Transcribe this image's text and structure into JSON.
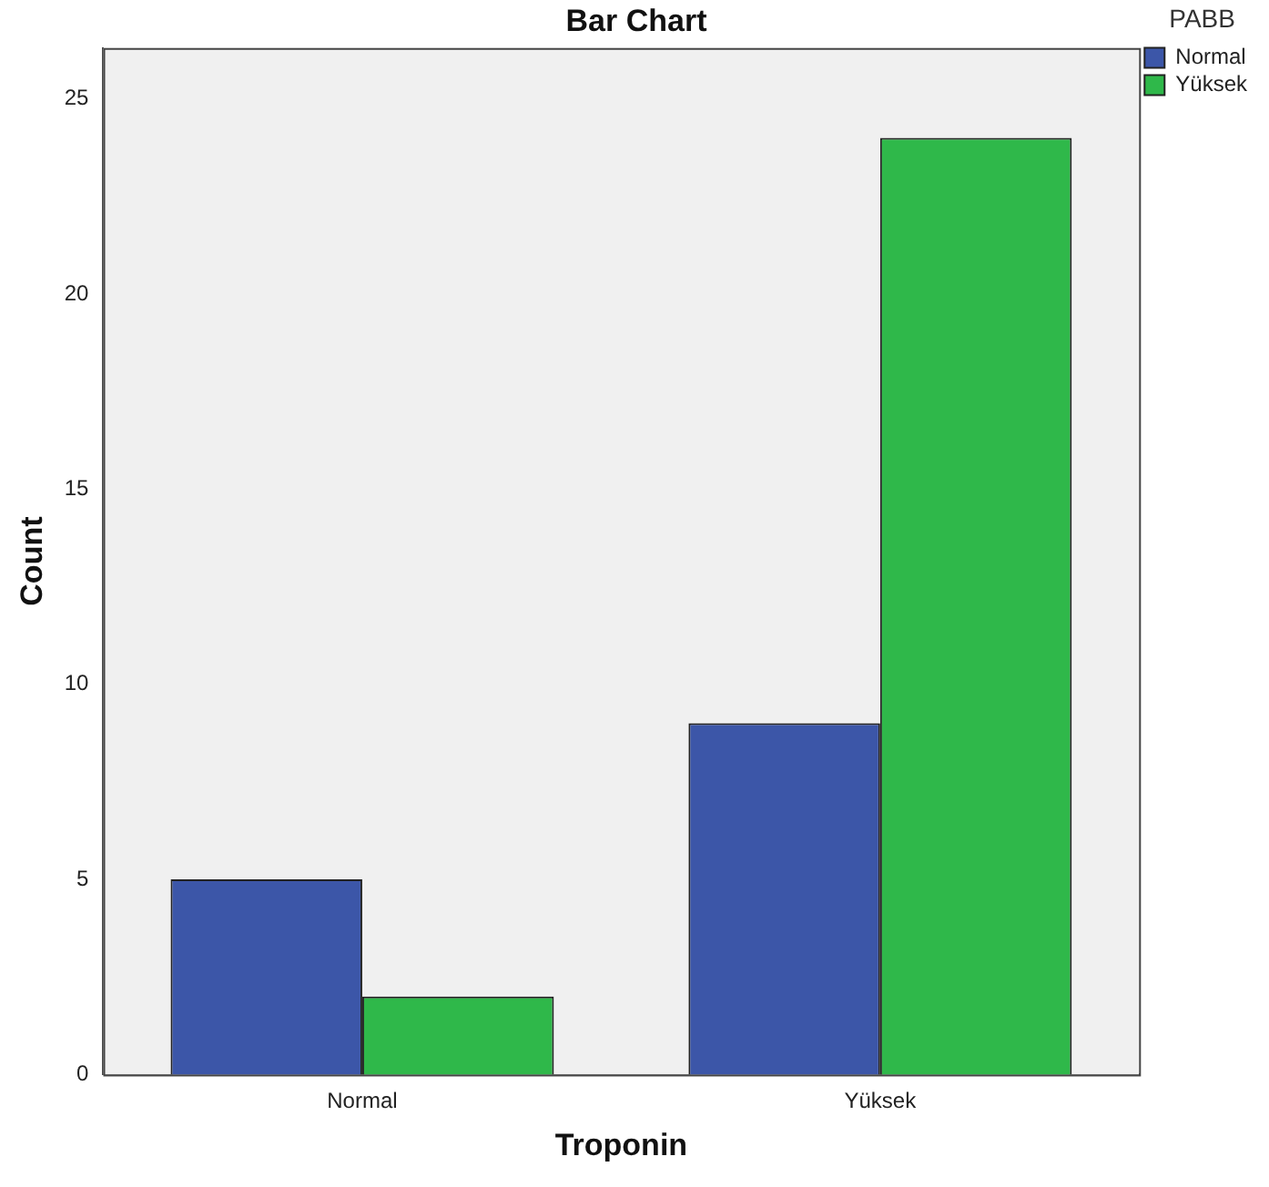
{
  "chart_data": {
    "type": "bar",
    "title": "Bar Chart",
    "xlabel": "Troponin",
    "ylabel": "Count",
    "legend_title": "PABB",
    "categories": [
      "Normal",
      "Yüksek"
    ],
    "series": [
      {
        "name": "Normal",
        "color": "#3c56a8",
        "values": [
          5,
          9
        ]
      },
      {
        "name": "Yüksek",
        "color": "#2fb84a",
        "values": [
          2,
          24
        ]
      }
    ],
    "ylim": [
      0,
      26.3
    ],
    "yticks": [
      0,
      5,
      10,
      15,
      20,
      25
    ],
    "grid": false,
    "legend": "top right"
  }
}
